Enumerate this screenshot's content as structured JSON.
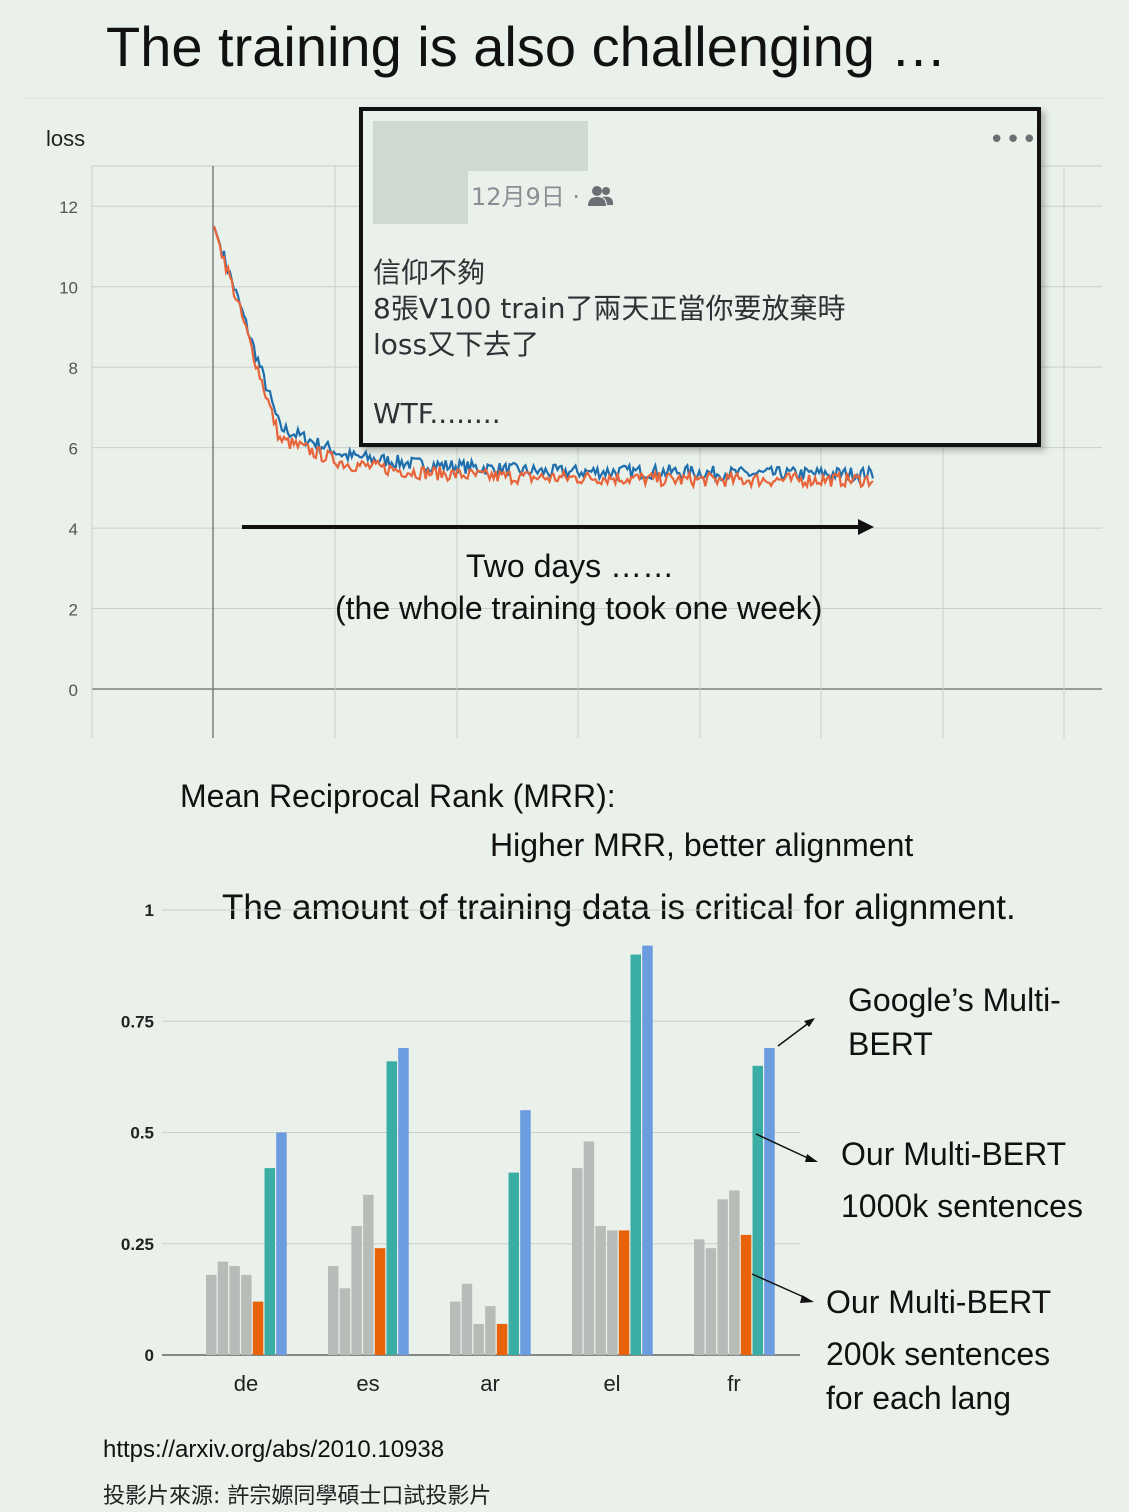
{
  "slide": {
    "title": "The training is also challenging …",
    "footer_url": "https://arxiv.org/abs/2010.10938",
    "footer_source": "投影片來源: 許宗嫄同學碩士口試投影片"
  },
  "post": {
    "date": "12月9日 ·",
    "more": "•••",
    "lines": [
      "信仰不夠",
      "8張V100 train了兩天正當你要放棄時",
      "loss又下去了",
      "WTF........"
    ]
  },
  "loss_annotation": {
    "line1": "Two days ……",
    "line2": "(the whole training took one week)"
  },
  "mrr_text": {
    "title": "Mean Reciprocal Rank (MRR):",
    "subtitle": "Higher MRR, better alignment",
    "claim": "The amount of training data is critical for alignment."
  },
  "legend_labels": {
    "google": [
      "Google’s Multi-",
      "BERT"
    ],
    "our_1000k": [
      "Our Multi-BERT",
      "1000k sentences"
    ],
    "our_200k": [
      "Our Multi-BERT",
      "200k sentences",
      "for each lang"
    ]
  },
  "colors": {
    "blue_series": "#1f6fae",
    "orange_series": "#e8643a",
    "gray_bar": "#b8bcb9",
    "orange_bar": "#e8620a",
    "teal_bar": "#3aaea5",
    "blue_bar": "#6b9ce0"
  },
  "chart_data": [
    {
      "type": "line",
      "ylabel": "loss",
      "ylim": [
        0,
        13
      ],
      "y_ticks": [
        "0",
        "2",
        "4",
        "6",
        "8",
        "10",
        "12"
      ],
      "grid": true,
      "series": [
        {
          "values_summary": [
            11.5,
            6.5,
            5.8,
            5.6,
            5.5,
            5.4,
            5.4,
            5.4,
            5.35,
            5.35,
            5.35
          ]
        },
        {
          "values_summary": [
            11.5,
            6.2,
            5.6,
            5.4,
            5.3,
            5.25,
            5.25,
            5.2,
            5.2,
            5.2,
            5.2
          ]
        }
      ]
    },
    {
      "type": "bar",
      "categories": [
        "de",
        "es",
        "ar",
        "el",
        "fr"
      ],
      "ylim": [
        0,
        1
      ],
      "y_ticks": [
        "0",
        "0.25",
        "0.5",
        "0.75",
        "1"
      ],
      "grid": true,
      "groups": [
        {
          "gray": [
            0.18,
            0.21,
            0.2,
            0.18
          ],
          "orange": 0.12,
          "teal": 0.42,
          "blue": 0.5
        },
        {
          "gray": [
            0.2,
            0.15,
            0.29,
            0.36
          ],
          "orange": 0.24,
          "teal": 0.66,
          "blue": 0.69
        },
        {
          "gray": [
            0.12,
            0.16,
            0.07,
            0.11
          ],
          "orange": 0.07,
          "teal": 0.41,
          "blue": 0.55
        },
        {
          "gray": [
            0.42,
            0.48,
            0.29,
            0.28
          ],
          "orange": 0.28,
          "teal": 0.9,
          "blue": 0.92
        },
        {
          "gray": [
            0.26,
            0.24,
            0.35,
            0.37
          ],
          "orange": 0.27,
          "teal": 0.65,
          "blue": 0.69
        }
      ]
    }
  ]
}
